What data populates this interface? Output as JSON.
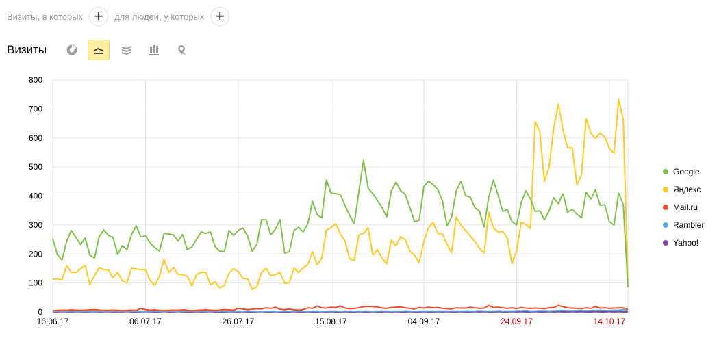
{
  "segment": {
    "visits_label": "Визиты, в которых",
    "people_label": "для людей, у которых"
  },
  "title": "Визиты",
  "toolbar": [
    {
      "icon": "pie-chart-icon"
    },
    {
      "icon": "line-chart-icon",
      "active": true
    },
    {
      "icon": "stacked-area-icon"
    },
    {
      "icon": "bar-chart-icon"
    },
    {
      "icon": "map-pin-icon"
    }
  ],
  "chart_data": {
    "type": "line",
    "ylim": [
      0,
      800
    ],
    "yticks": [
      "0",
      "100",
      "200",
      "300",
      "400",
      "500",
      "600",
      "700",
      "800"
    ],
    "xstart": "16.06.17",
    "xticks": [
      {
        "label": "16.06.17",
        "day": 0,
        "weekend": false
      },
      {
        "label": "06.07.17",
        "day": 20,
        "weekend": false
      },
      {
        "label": "26.07.17",
        "day": 40,
        "weekend": false
      },
      {
        "label": "15.08.17",
        "day": 60,
        "weekend": false
      },
      {
        "label": "04.09.17",
        "day": 80,
        "weekend": false
      },
      {
        "label": "24.09.17",
        "day": 100,
        "weekend": true
      },
      {
        "label": "14.10.17",
        "day": 120,
        "weekend": true
      }
    ],
    "grid": true,
    "legend_position": "right",
    "series": [
      {
        "name": "Google",
        "color": "#7fc04f",
        "values": [
          252,
          198,
          179,
          243,
          281,
          257,
          233,
          255,
          196,
          186,
          259,
          283,
          264,
          257,
          198,
          229,
          215,
          267,
          297,
          259,
          262,
          238,
          222,
          210,
          271,
          269,
          266,
          245,
          267,
          215,
          224,
          250,
          276,
          271,
          276,
          226,
          210,
          208,
          281,
          264,
          281,
          290,
          262,
          210,
          233,
          318,
          318,
          266,
          285,
          318,
          203,
          208,
          281,
          292,
          276,
          304,
          382,
          335,
          325,
          455,
          410,
          408,
          405,
          368,
          333,
          304,
          415,
          523,
          427,
          408,
          384,
          360,
          328,
          417,
          448,
          418,
          405,
          360,
          311,
          316,
          432,
          451,
          439,
          422,
          384,
          297,
          328,
          418,
          451,
          401,
          396,
          360,
          347,
          293,
          396,
          455,
          403,
          347,
          354,
          311,
          300,
          377,
          418,
          389,
          347,
          349,
          318,
          349,
          394,
          373,
          408,
          344,
          354,
          337,
          325,
          413,
          389,
          422,
          368,
          370,
          311,
          300,
          410,
          370,
          85
        ]
      },
      {
        "name": "Яндекс",
        "color": "#ffc929",
        "values": [
          113,
          114,
          111,
          160,
          137,
          136,
          149,
          160,
          94,
          125,
          153,
          146,
          145,
          118,
          137,
          106,
          101,
          151,
          148,
          146,
          146,
          108,
          92,
          123,
          182,
          136,
          153,
          130,
          129,
          123,
          90,
          129,
          137,
          137,
          94,
          104,
          83,
          92,
          134,
          149,
          139,
          116,
          114,
          78,
          87,
          136,
          151,
          125,
          129,
          137,
          99,
          101,
          151,
          136,
          151,
          165,
          208,
          163,
          184,
          283,
          290,
          304,
          269,
          245,
          184,
          177,
          266,
          271,
          290,
          196,
          215,
          186,
          165,
          248,
          228,
          259,
          250,
          210,
          196,
          170,
          243,
          290,
          309,
          271,
          269,
          233,
          205,
          328,
          299,
          281,
          262,
          243,
          219,
          203,
          344,
          290,
          276,
          278,
          255,
          167,
          210,
          309,
          302,
          288,
          656,
          623,
          450,
          500,
          632,
          717,
          627,
          566,
          566,
          439,
          474,
          667,
          616,
          599,
          617,
          604,
          564,
          547,
          733,
          663,
          100
        ]
      },
      {
        "name": "Mail.ru",
        "color": "#f44a2c",
        "values": [
          4,
          5,
          6,
          5,
          7,
          6,
          5,
          6,
          7,
          8,
          6,
          5,
          5,
          6,
          5,
          4,
          5,
          6,
          5,
          12,
          8,
          6,
          7,
          5,
          4,
          5,
          6,
          5,
          7,
          6,
          4,
          5,
          6,
          7,
          6,
          5,
          6,
          8,
          7,
          6,
          12,
          10,
          8,
          9,
          11,
          10,
          14,
          12,
          16,
          9,
          8,
          10,
          7,
          6,
          8,
          14,
          12,
          20,
          14,
          13,
          16,
          15,
          20,
          13,
          11,
          12,
          14,
          18,
          19,
          18,
          17,
          13,
          12,
          15,
          16,
          17,
          14,
          12,
          10,
          15,
          13,
          16,
          14,
          15,
          12,
          11,
          10,
          14,
          13,
          13,
          16,
          14,
          12,
          13,
          22,
          15,
          16,
          14,
          12,
          14,
          11,
          15,
          13,
          12,
          13,
          12,
          11,
          14,
          15,
          22,
          18,
          14,
          13,
          12,
          11,
          14,
          12,
          18,
          13,
          14,
          12,
          13,
          14,
          14,
          8
        ]
      },
      {
        "name": "Rambler",
        "color": "#5ca7e8",
        "values": [
          1,
          2,
          2,
          1,
          2,
          2,
          1,
          2,
          1,
          2,
          2,
          1,
          2,
          2,
          1,
          2,
          1,
          2,
          2,
          1,
          2,
          1,
          2,
          2,
          1,
          2,
          2,
          1,
          2,
          2,
          3,
          2,
          2,
          1,
          2,
          3,
          2,
          2,
          2,
          1,
          2,
          2,
          3,
          2,
          1,
          2,
          2,
          3,
          2,
          2,
          3,
          2,
          2,
          3,
          2,
          2,
          3,
          3,
          2,
          3,
          3,
          3,
          2,
          3,
          3,
          2,
          3,
          3,
          3,
          2,
          3,
          3,
          3,
          2,
          3,
          3,
          3,
          3,
          2,
          3,
          3,
          3,
          3,
          3,
          3,
          3,
          3,
          3,
          3,
          3,
          3,
          3,
          4,
          3,
          3,
          3,
          4,
          3,
          3,
          3,
          4,
          4,
          5,
          3,
          3,
          4,
          4,
          3,
          4,
          4,
          5,
          4,
          4,
          5,
          5,
          4,
          5,
          5,
          6,
          5,
          5,
          6,
          6,
          8,
          3
        ]
      },
      {
        "name": "Yahoo!",
        "color": "#8e44ad",
        "values": [
          0,
          0,
          1,
          0,
          0,
          1,
          0,
          0,
          0,
          1,
          0,
          0,
          1,
          0,
          0,
          0,
          1,
          0,
          0,
          0,
          1,
          0,
          0,
          0,
          1,
          0,
          0,
          1,
          0,
          0,
          0,
          1,
          0,
          0,
          1,
          0,
          0,
          0,
          1,
          0,
          0,
          1,
          0,
          0,
          0,
          1,
          0,
          0,
          1,
          0,
          0,
          0,
          1,
          0,
          0,
          1,
          0,
          0,
          1,
          0,
          1,
          0,
          0,
          1,
          0,
          0,
          1,
          0,
          0,
          1,
          0,
          0,
          1,
          0,
          1,
          0,
          0,
          1,
          0,
          0,
          1,
          0,
          0,
          1,
          0,
          1,
          0,
          0,
          1,
          0,
          0,
          1,
          0,
          1,
          0,
          0,
          1,
          0,
          0,
          1,
          0,
          1,
          0,
          0,
          1,
          0,
          0,
          1,
          0,
          1,
          0,
          0,
          1,
          0,
          1,
          0,
          0,
          1,
          0,
          0,
          1,
          0,
          1,
          0,
          0
        ]
      }
    ]
  }
}
